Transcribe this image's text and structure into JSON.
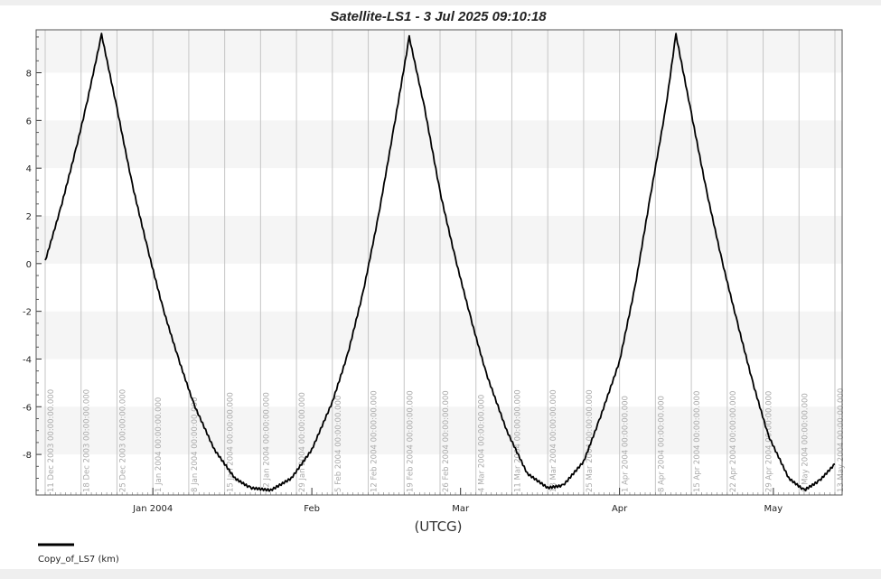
{
  "chart_data": {
    "type": "line",
    "title": "Satellite-LS1 -  3 Jul 2025 09:10:18",
    "xlabel": "(UTCG)",
    "ylabel": "",
    "x_range": [
      "2003-12-11",
      "2004-05-13"
    ],
    "ylim": [
      -9.7,
      9.8
    ],
    "y_ticks": [
      8,
      6,
      4,
      2,
      0,
      -2,
      -4,
      -6,
      -8
    ],
    "y_tick_labels": [
      "8",
      "6",
      "4",
      "2",
      "0",
      "-2",
      "-4",
      "-6",
      "-8"
    ],
    "grid": true,
    "alternating_bands": true,
    "x_major_ticks": [
      {
        "date": "2004-01-01",
        "label": "Jan 2004"
      },
      {
        "date": "2004-02-01",
        "label": "Feb"
      },
      {
        "date": "2004-03-01",
        "label": "Mar"
      },
      {
        "date": "2004-04-01",
        "label": "Apr"
      },
      {
        "date": "2004-05-01",
        "label": "May"
      }
    ],
    "x_grid_lines": [
      {
        "date": "2003-12-11",
        "label": "11 Dec 2003 00:00:00.000"
      },
      {
        "date": "2003-12-18",
        "label": "18 Dec 2003 00:00:00.000"
      },
      {
        "date": "2003-12-25",
        "label": "25 Dec 2003 00:00:00.000"
      },
      {
        "date": "2004-01-01",
        "label": "1 Jan 2004 00:00:00.000"
      },
      {
        "date": "2004-01-08",
        "label": "8 Jan 2004 00:00:00.000"
      },
      {
        "date": "2004-01-15",
        "label": "15 Jan 2004 00:00:00.000"
      },
      {
        "date": "2004-01-22",
        "label": "22 Jan 2004 00:00:00.000"
      },
      {
        "date": "2004-01-29",
        "label": "29 Jan 2004 00:00:00.000"
      },
      {
        "date": "2004-02-05",
        "label": "5 Feb 2004 00:00:00.000"
      },
      {
        "date": "2004-02-12",
        "label": "12 Feb 2004 00:00:00.000"
      },
      {
        "date": "2004-02-19",
        "label": "19 Feb 2004 00:00:00.000"
      },
      {
        "date": "2004-02-26",
        "label": "26 Feb 2004 00:00:00.000"
      },
      {
        "date": "2004-03-04",
        "label": "4 Mar 2004 00:00:00.000"
      },
      {
        "date": "2004-03-11",
        "label": "11 Mar 2004 00:00:00.000"
      },
      {
        "date": "2004-03-18",
        "label": "18 Mar 2004 00:00:00.000"
      },
      {
        "date": "2004-03-25",
        "label": "25 Mar 2004 00:00:00.000"
      },
      {
        "date": "2004-04-01",
        "label": "1 Apr 2004 00:00:00.000"
      },
      {
        "date": "2004-04-08",
        "label": "8 Apr 2004 00:00:00.000"
      },
      {
        "date": "2004-04-15",
        "label": "15 Apr 2004 00:00:00.000"
      },
      {
        "date": "2004-04-22",
        "label": "22 Apr 2004 00:00:00.000"
      },
      {
        "date": "2004-04-29",
        "label": "29 Apr 2004 00:00:00.000"
      },
      {
        "date": "2004-05-06",
        "label": "6 May 2004 00:00:00.000"
      },
      {
        "date": "2004-05-13",
        "label": "13 May 2004 00:00:00.000"
      }
    ],
    "series": [
      {
        "name": "Copy_of_LS7 (km)",
        "color": "#000000",
        "points": [
          {
            "x": "2003-12-11",
            "y": 0.1
          },
          {
            "x": "2003-12-14",
            "y": 2.3
          },
          {
            "x": "2003-12-17",
            "y": 4.8
          },
          {
            "x": "2003-12-19",
            "y": 6.6
          },
          {
            "x": "2003-12-22",
            "y": 9.6
          },
          {
            "x": "2003-12-25",
            "y": 6.5
          },
          {
            "x": "2003-12-28",
            "y": 3.3
          },
          {
            "x": "2003-12-31",
            "y": 0.6
          },
          {
            "x": "2004-01-03",
            "y": -1.9
          },
          {
            "x": "2004-01-06",
            "y": -4.0
          },
          {
            "x": "2004-01-09",
            "y": -5.9
          },
          {
            "x": "2004-01-13",
            "y": -7.8
          },
          {
            "x": "2004-01-17",
            "y": -9.0
          },
          {
            "x": "2004-01-20",
            "y": -9.4
          },
          {
            "x": "2004-01-24",
            "y": -9.5
          },
          {
            "x": "2004-01-28",
            "y": -9.0
          },
          {
            "x": "2004-02-01",
            "y": -7.8
          },
          {
            "x": "2004-02-05",
            "y": -5.8
          },
          {
            "x": "2004-02-08",
            "y": -3.8
          },
          {
            "x": "2004-02-11",
            "y": -1.2
          },
          {
            "x": "2004-02-14",
            "y": 2.0
          },
          {
            "x": "2004-02-17",
            "y": 5.7
          },
          {
            "x": "2004-02-20",
            "y": 9.5
          },
          {
            "x": "2004-02-23",
            "y": 6.5
          },
          {
            "x": "2004-02-26",
            "y": 3.0
          },
          {
            "x": "2004-02-29",
            "y": 0.2
          },
          {
            "x": "2004-03-03",
            "y": -2.3
          },
          {
            "x": "2004-03-06",
            "y": -4.6
          },
          {
            "x": "2004-03-10",
            "y": -7.0
          },
          {
            "x": "2004-03-14",
            "y": -8.8
          },
          {
            "x": "2004-03-18",
            "y": -9.4
          },
          {
            "x": "2004-03-21",
            "y": -9.3
          },
          {
            "x": "2004-03-25",
            "y": -8.3
          },
          {
            "x": "2004-03-28",
            "y": -6.6
          },
          {
            "x": "2004-04-01",
            "y": -4.1
          },
          {
            "x": "2004-04-04",
            "y": -1.0
          },
          {
            "x": "2004-04-07",
            "y": 2.8
          },
          {
            "x": "2004-04-10",
            "y": 6.5
          },
          {
            "x": "2004-04-12",
            "y": 9.6
          },
          {
            "x": "2004-04-15",
            "y": 6.3
          },
          {
            "x": "2004-04-18",
            "y": 3.0
          },
          {
            "x": "2004-04-21",
            "y": 0.1
          },
          {
            "x": "2004-04-24",
            "y": -2.5
          },
          {
            "x": "2004-04-27",
            "y": -5.0
          },
          {
            "x": "2004-04-30",
            "y": -7.2
          },
          {
            "x": "2004-05-04",
            "y": -9.0
          },
          {
            "x": "2004-05-07",
            "y": -9.5
          },
          {
            "x": "2004-05-10",
            "y": -9.1
          },
          {
            "x": "2004-05-13",
            "y": -8.4
          }
        ]
      }
    ]
  }
}
